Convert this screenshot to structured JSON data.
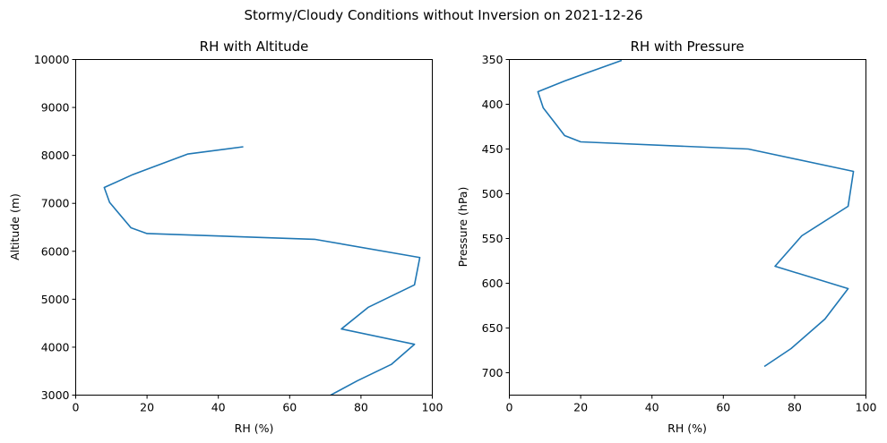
{
  "figure": {
    "suptitle": "Stormy/Cloudy Conditions without Inversion on 2021-12-26",
    "line_color": "#1f77b4"
  },
  "chart_data": [
    {
      "type": "line",
      "title": "RH with Altitude",
      "xlabel": "RH (%)",
      "ylabel": "Altitude (m)",
      "xlim": [
        0,
        100
      ],
      "ylim": [
        3000,
        10000
      ],
      "y_inverted": false,
      "grid": false,
      "xticks": [
        0,
        20,
        40,
        60,
        80,
        100
      ],
      "yticks": [
        3000,
        4000,
        5000,
        6000,
        7000,
        8000,
        9000,
        10000
      ],
      "series": [
        {
          "x": [
            71.5,
            79,
            88.5,
            95,
            74.5,
            82,
            95,
            96.5,
            67,
            20,
            15.5,
            9.5,
            8,
            16,
            21,
            31.5,
            47
          ],
          "y": [
            3000,
            3300,
            3640,
            4060,
            4380,
            4830,
            5300,
            5870,
            6250,
            6370,
            6490,
            7020,
            7330,
            7600,
            7740,
            8030,
            8180
          ]
        }
      ]
    },
    {
      "type": "line",
      "title": "RH with Pressure",
      "xlabel": "RH (%)",
      "ylabel": "Pressure (hPa)",
      "xlim": [
        0,
        100
      ],
      "ylim": [
        725,
        350
      ],
      "y_inverted": true,
      "grid": false,
      "xticks": [
        0,
        20,
        40,
        60,
        80,
        100
      ],
      "yticks": [
        350,
        400,
        450,
        500,
        550,
        600,
        650,
        700
      ],
      "series": [
        {
          "x": [
            71.5,
            79,
            88.5,
            95,
            74.5,
            82,
            95,
            96.5,
            67,
            20,
            15.5,
            13,
            9.5,
            8,
            15.5,
            21,
            31.5
          ],
          "y": [
            693,
            673,
            640,
            606,
            581,
            547,
            514,
            475,
            450,
            442,
            435,
            422,
            404,
            386,
            374,
            366,
            351
          ]
        }
      ]
    }
  ]
}
